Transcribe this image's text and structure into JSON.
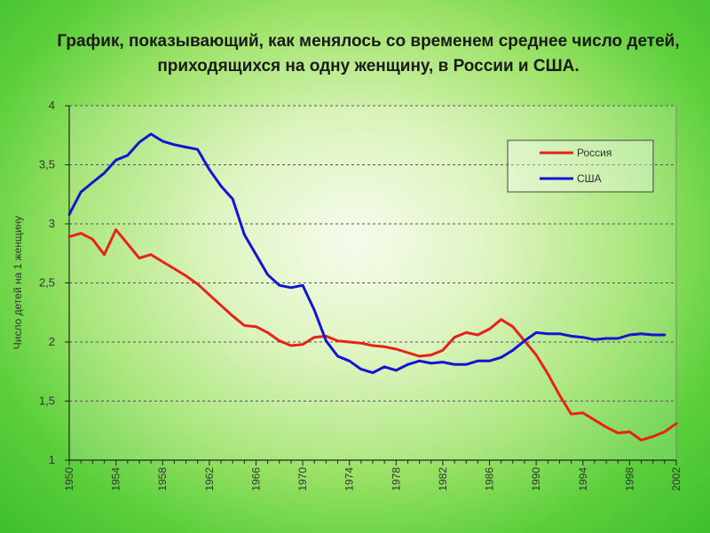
{
  "title": "График, показывающий, как менялось со временем среднее число детей, приходящихся на одну женщину, в России и США.",
  "colors": {
    "russia": "#e8221a",
    "usa": "#1414d2",
    "grid": "#555555",
    "axis": "#222222",
    "background_green": "#3fbf2c"
  },
  "chart_data": {
    "type": "line",
    "title": "График, показывающий, как менялось со временем среднее число детей, приходящихся на одну женщину, в России и США.",
    "xlabel": "",
    "ylabel": "Число детей на 1 женщину",
    "xlim": [
      1950,
      2002
    ],
    "ylim": [
      1,
      4
    ],
    "x_ticks": [
      "1950",
      "1954",
      "1958",
      "1962",
      "1966",
      "1970",
      "1974",
      "1978",
      "1982",
      "1986",
      "1990",
      "1994",
      "1998",
      "2002"
    ],
    "y_ticks": [
      "1",
      "1,5",
      "2",
      "2,5",
      "3",
      "3,5",
      "4"
    ],
    "grid": "horizontal dashed",
    "legend_position": "top-right",
    "series": [
      {
        "name": "Россия",
        "color": "#e8221a",
        "points": [
          [
            1950,
            2.89
          ],
          [
            1951,
            2.92
          ],
          [
            1952,
            2.87
          ],
          [
            1953,
            2.74
          ],
          [
            1954,
            2.95
          ],
          [
            1955,
            2.83
          ],
          [
            1956,
            2.71
          ],
          [
            1957,
            2.74
          ],
          [
            1958,
            2.68
          ],
          [
            1959,
            2.62
          ],
          [
            1960,
            2.56
          ],
          [
            1961,
            2.49
          ],
          [
            1962,
            2.4
          ],
          [
            1963,
            2.31
          ],
          [
            1964,
            2.22
          ],
          [
            1965,
            2.14
          ],
          [
            1966,
            2.13
          ],
          [
            1967,
            2.08
          ],
          [
            1968,
            2.01
          ],
          [
            1969,
            1.97
          ],
          [
            1970,
            1.98
          ],
          [
            1971,
            2.04
          ],
          [
            1972,
            2.05
          ],
          [
            1973,
            2.01
          ],
          [
            1974,
            2.0
          ],
          [
            1975,
            1.99
          ],
          [
            1976,
            1.97
          ],
          [
            1977,
            1.96
          ],
          [
            1978,
            1.94
          ],
          [
            1979,
            1.91
          ],
          [
            1980,
            1.88
          ],
          [
            1981,
            1.89
          ],
          [
            1982,
            1.93
          ],
          [
            1983,
            2.04
          ],
          [
            1984,
            2.08
          ],
          [
            1985,
            2.06
          ],
          [
            1986,
            2.11
          ],
          [
            1987,
            2.19
          ],
          [
            1988,
            2.13
          ],
          [
            1989,
            2.01
          ],
          [
            1990,
            1.89
          ],
          [
            1991,
            1.73
          ],
          [
            1992,
            1.55
          ],
          [
            1993,
            1.39
          ],
          [
            1994,
            1.4
          ],
          [
            1995,
            1.34
          ],
          [
            1996,
            1.28
          ],
          [
            1997,
            1.23
          ],
          [
            1998,
            1.24
          ],
          [
            1999,
            1.17
          ],
          [
            2000,
            1.2
          ],
          [
            2001,
            1.24
          ],
          [
            2002,
            1.31
          ]
        ]
      },
      {
        "name": "США",
        "color": "#1414d2",
        "points": [
          [
            1950,
            3.08
          ],
          [
            1951,
            3.27
          ],
          [
            1952,
            3.35
          ],
          [
            1953,
            3.43
          ],
          [
            1954,
            3.54
          ],
          [
            1955,
            3.58
          ],
          [
            1956,
            3.69
          ],
          [
            1957,
            3.76
          ],
          [
            1958,
            3.7
          ],
          [
            1959,
            3.67
          ],
          [
            1960,
            3.65
          ],
          [
            1961,
            3.63
          ],
          [
            1962,
            3.46
          ],
          [
            1963,
            3.32
          ],
          [
            1964,
            3.21
          ],
          [
            1965,
            2.91
          ],
          [
            1966,
            2.74
          ],
          [
            1967,
            2.57
          ],
          [
            1968,
            2.48
          ],
          [
            1969,
            2.46
          ],
          [
            1970,
            2.48
          ],
          [
            1971,
            2.27
          ],
          [
            1972,
            2.01
          ],
          [
            1973,
            1.88
          ],
          [
            1974,
            1.84
          ],
          [
            1975,
            1.77
          ],
          [
            1976,
            1.74
          ],
          [
            1977,
            1.79
          ],
          [
            1978,
            1.76
          ],
          [
            1979,
            1.81
          ],
          [
            1980,
            1.84
          ],
          [
            1981,
            1.82
          ],
          [
            1982,
            1.83
          ],
          [
            1983,
            1.81
          ],
          [
            1984,
            1.81
          ],
          [
            1985,
            1.84
          ],
          [
            1986,
            1.84
          ],
          [
            1987,
            1.87
          ],
          [
            1988,
            1.93
          ],
          [
            1989,
            2.01
          ],
          [
            1990,
            2.08
          ],
          [
            1991,
            2.07
          ],
          [
            1992,
            2.07
          ],
          [
            1993,
            2.05
          ],
          [
            1994,
            2.04
          ],
          [
            1995,
            2.02
          ],
          [
            1996,
            2.03
          ],
          [
            1997,
            2.03
          ],
          [
            1998,
            2.06
          ],
          [
            1999,
            2.07
          ],
          [
            2000,
            2.06
          ],
          [
            2001,
            2.06
          ]
        ]
      }
    ]
  }
}
